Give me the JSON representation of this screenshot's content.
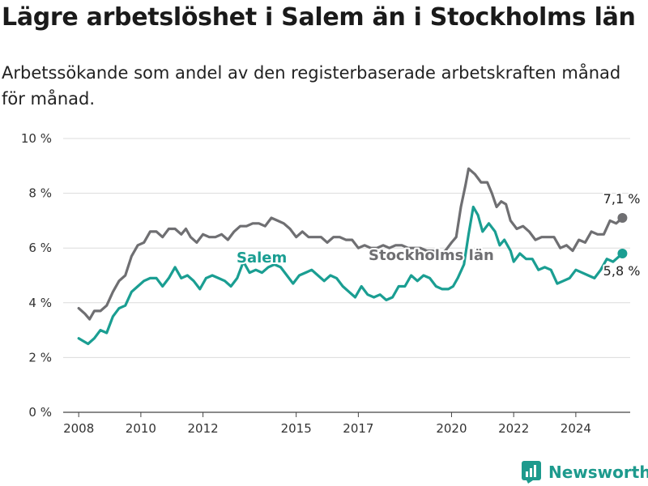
{
  "title": "Lägre arbetslöshet i Salem än i Stockholms län",
  "subtitle": "Arbetssökande som andel av den registerbaserade arbetskraften månad för månad.",
  "brand": "Newsworthy",
  "colors": {
    "salem": "#1a9e92",
    "stockholm": "#6f6f72",
    "grid": "#dcdcdc",
    "brand": "#1d9a8d"
  },
  "chart_data": {
    "type": "line",
    "xlabel": "",
    "ylabel": "",
    "xlim": [
      2007.5,
      2025.75
    ],
    "ylim": [
      0,
      10
    ],
    "x_ticks": [
      {
        "value": 2008,
        "label": "2008"
      },
      {
        "value": 2010,
        "label": "2010"
      },
      {
        "value": 2012,
        "label": "2012"
      },
      {
        "value": 2015,
        "label": "2015"
      },
      {
        "value": 2017,
        "label": "2017"
      },
      {
        "value": 2020,
        "label": "2020"
      },
      {
        "value": 2022,
        "label": "2022"
      },
      {
        "value": 2024,
        "label": "2024"
      }
    ],
    "y_ticks": [
      {
        "value": 0,
        "label": "0 %"
      },
      {
        "value": 2,
        "label": "2 %"
      },
      {
        "value": 4,
        "label": "4 %"
      },
      {
        "value": 6,
        "label": "6 %"
      },
      {
        "value": 8,
        "label": "8 %"
      },
      {
        "value": 10,
        "label": "10 %"
      }
    ],
    "grid": true,
    "series": [
      {
        "name": "Stockholms län",
        "end_label": "7,1 %",
        "points": [
          [
            2008.0,
            3.8
          ],
          [
            2008.2,
            3.6
          ],
          [
            2008.35,
            3.4
          ],
          [
            2008.5,
            3.7
          ],
          [
            2008.7,
            3.7
          ],
          [
            2008.9,
            3.9
          ],
          [
            2009.1,
            4.4
          ],
          [
            2009.3,
            4.8
          ],
          [
            2009.5,
            5.0
          ],
          [
            2009.7,
            5.7
          ],
          [
            2009.9,
            6.1
          ],
          [
            2010.1,
            6.2
          ],
          [
            2010.3,
            6.6
          ],
          [
            2010.5,
            6.6
          ],
          [
            2010.7,
            6.4
          ],
          [
            2010.9,
            6.7
          ],
          [
            2011.1,
            6.7
          ],
          [
            2011.3,
            6.5
          ],
          [
            2011.45,
            6.7
          ],
          [
            2011.6,
            6.4
          ],
          [
            2011.8,
            6.2
          ],
          [
            2012.0,
            6.5
          ],
          [
            2012.2,
            6.4
          ],
          [
            2012.4,
            6.4
          ],
          [
            2012.6,
            6.5
          ],
          [
            2012.8,
            6.3
          ],
          [
            2013.0,
            6.6
          ],
          [
            2013.2,
            6.8
          ],
          [
            2013.4,
            6.8
          ],
          [
            2013.6,
            6.9
          ],
          [
            2013.8,
            6.9
          ],
          [
            2014.0,
            6.8
          ],
          [
            2014.2,
            7.1
          ],
          [
            2014.4,
            7.0
          ],
          [
            2014.6,
            6.9
          ],
          [
            2014.8,
            6.7
          ],
          [
            2015.0,
            6.4
          ],
          [
            2015.2,
            6.6
          ],
          [
            2015.4,
            6.4
          ],
          [
            2015.6,
            6.4
          ],
          [
            2015.8,
            6.4
          ],
          [
            2016.0,
            6.2
          ],
          [
            2016.2,
            6.4
          ],
          [
            2016.4,
            6.4
          ],
          [
            2016.6,
            6.3
          ],
          [
            2016.8,
            6.3
          ],
          [
            2017.0,
            6.0
          ],
          [
            2017.2,
            6.1
          ],
          [
            2017.4,
            6.0
          ],
          [
            2017.6,
            6.0
          ],
          [
            2017.8,
            6.1
          ],
          [
            2018.0,
            6.0
          ],
          [
            2018.2,
            6.1
          ],
          [
            2018.4,
            6.1
          ],
          [
            2018.6,
            6.0
          ],
          [
            2018.8,
            6.0
          ],
          [
            2019.0,
            6.0
          ],
          [
            2019.2,
            5.9
          ],
          [
            2019.4,
            5.9
          ],
          [
            2019.6,
            5.8
          ],
          [
            2019.8,
            5.9
          ],
          [
            2020.0,
            6.2
          ],
          [
            2020.15,
            6.4
          ],
          [
            2020.3,
            7.5
          ],
          [
            2020.45,
            8.3
          ],
          [
            2020.55,
            8.9
          ],
          [
            2020.75,
            8.7
          ],
          [
            2020.95,
            8.4
          ],
          [
            2021.15,
            8.4
          ],
          [
            2021.3,
            8.0
          ],
          [
            2021.45,
            7.5
          ],
          [
            2021.6,
            7.7
          ],
          [
            2021.75,
            7.6
          ],
          [
            2021.9,
            7.0
          ],
          [
            2022.1,
            6.7
          ],
          [
            2022.3,
            6.8
          ],
          [
            2022.5,
            6.6
          ],
          [
            2022.7,
            6.3
          ],
          [
            2022.9,
            6.4
          ],
          [
            2023.1,
            6.4
          ],
          [
            2023.3,
            6.4
          ],
          [
            2023.5,
            6.0
          ],
          [
            2023.7,
            6.1
          ],
          [
            2023.9,
            5.9
          ],
          [
            2024.1,
            6.3
          ],
          [
            2024.3,
            6.2
          ],
          [
            2024.5,
            6.6
          ],
          [
            2024.7,
            6.5
          ],
          [
            2024.9,
            6.5
          ],
          [
            2025.1,
            7.0
          ],
          [
            2025.3,
            6.9
          ],
          [
            2025.5,
            7.1
          ]
        ]
      },
      {
        "name": "Salem",
        "end_label": "5,8 %",
        "points": [
          [
            2008.0,
            2.7
          ],
          [
            2008.15,
            2.6
          ],
          [
            2008.3,
            2.5
          ],
          [
            2008.5,
            2.7
          ],
          [
            2008.7,
            3.0
          ],
          [
            2008.9,
            2.9
          ],
          [
            2009.1,
            3.5
          ],
          [
            2009.3,
            3.8
          ],
          [
            2009.5,
            3.9
          ],
          [
            2009.7,
            4.4
          ],
          [
            2009.9,
            4.6
          ],
          [
            2010.1,
            4.8
          ],
          [
            2010.3,
            4.9
          ],
          [
            2010.5,
            4.9
          ],
          [
            2010.7,
            4.6
          ],
          [
            2010.9,
            4.9
          ],
          [
            2011.1,
            5.3
          ],
          [
            2011.3,
            4.9
          ],
          [
            2011.5,
            5.0
          ],
          [
            2011.7,
            4.8
          ],
          [
            2011.9,
            4.5
          ],
          [
            2012.1,
            4.9
          ],
          [
            2012.3,
            5.0
          ],
          [
            2012.5,
            4.9
          ],
          [
            2012.7,
            4.8
          ],
          [
            2012.9,
            4.6
          ],
          [
            2013.1,
            4.9
          ],
          [
            2013.3,
            5.5
          ],
          [
            2013.5,
            5.1
          ],
          [
            2013.7,
            5.2
          ],
          [
            2013.9,
            5.1
          ],
          [
            2014.1,
            5.3
          ],
          [
            2014.3,
            5.4
          ],
          [
            2014.5,
            5.3
          ],
          [
            2014.7,
            5.0
          ],
          [
            2014.9,
            4.7
          ],
          [
            2015.1,
            5.0
          ],
          [
            2015.3,
            5.1
          ],
          [
            2015.5,
            5.2
          ],
          [
            2015.7,
            5.0
          ],
          [
            2015.9,
            4.8
          ],
          [
            2016.1,
            5.0
          ],
          [
            2016.3,
            4.9
          ],
          [
            2016.5,
            4.6
          ],
          [
            2016.7,
            4.4
          ],
          [
            2016.9,
            4.2
          ],
          [
            2017.1,
            4.6
          ],
          [
            2017.3,
            4.3
          ],
          [
            2017.5,
            4.2
          ],
          [
            2017.7,
            4.3
          ],
          [
            2017.9,
            4.1
          ],
          [
            2018.1,
            4.2
          ],
          [
            2018.3,
            4.6
          ],
          [
            2018.5,
            4.6
          ],
          [
            2018.7,
            5.0
          ],
          [
            2018.9,
            4.8
          ],
          [
            2019.1,
            5.0
          ],
          [
            2019.3,
            4.9
          ],
          [
            2019.5,
            4.6
          ],
          [
            2019.7,
            4.5
          ],
          [
            2019.9,
            4.5
          ],
          [
            2020.05,
            4.6
          ],
          [
            2020.2,
            4.9
          ],
          [
            2020.4,
            5.4
          ],
          [
            2020.55,
            6.5
          ],
          [
            2020.7,
            7.5
          ],
          [
            2020.85,
            7.2
          ],
          [
            2021.0,
            6.6
          ],
          [
            2021.2,
            6.9
          ],
          [
            2021.4,
            6.6
          ],
          [
            2021.55,
            6.1
          ],
          [
            2021.7,
            6.3
          ],
          [
            2021.9,
            5.9
          ],
          [
            2022.0,
            5.5
          ],
          [
            2022.2,
            5.8
          ],
          [
            2022.4,
            5.6
          ],
          [
            2022.6,
            5.6
          ],
          [
            2022.8,
            5.2
          ],
          [
            2023.0,
            5.3
          ],
          [
            2023.2,
            5.2
          ],
          [
            2023.4,
            4.7
          ],
          [
            2023.6,
            4.8
          ],
          [
            2023.8,
            4.9
          ],
          [
            2024.0,
            5.2
          ],
          [
            2024.2,
            5.1
          ],
          [
            2024.4,
            5.0
          ],
          [
            2024.6,
            4.9
          ],
          [
            2024.8,
            5.2
          ],
          [
            2025.0,
            5.6
          ],
          [
            2025.2,
            5.5
          ],
          [
            2025.5,
            5.8
          ]
        ]
      }
    ]
  }
}
